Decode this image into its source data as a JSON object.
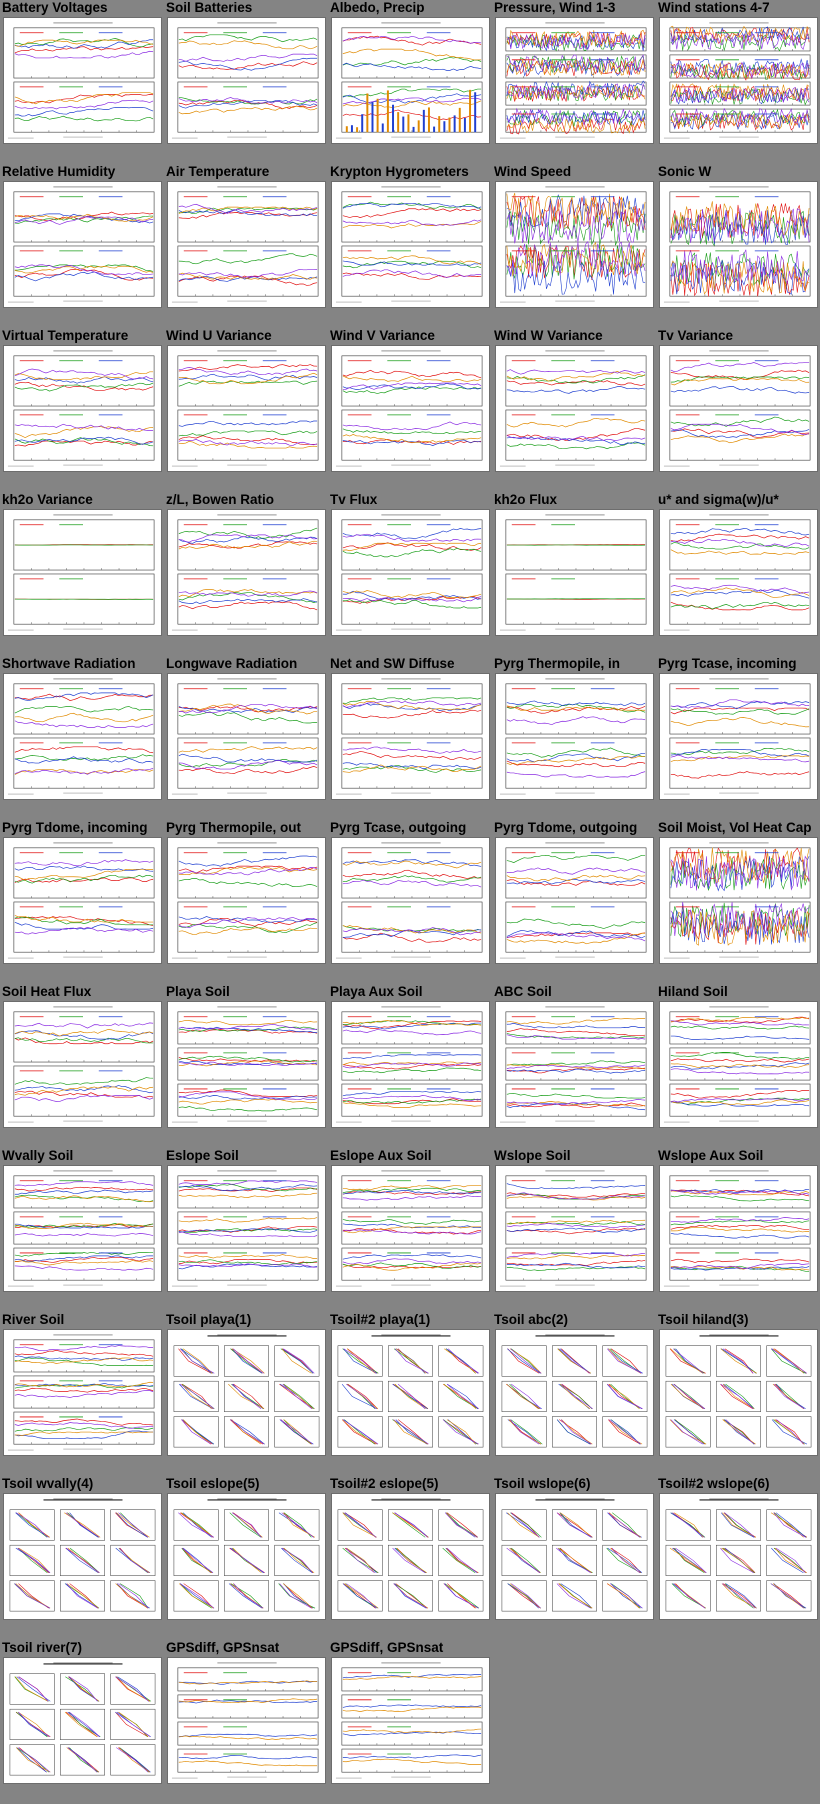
{
  "page": {
    "background": "#848484"
  },
  "panels": [
    {
      "title": "Battery Voltages",
      "thumb_type": "strip-2"
    },
    {
      "title": "Soil Batteries",
      "thumb_type": "strip-2"
    },
    {
      "title": "Albedo, Precip",
      "thumb_type": "bars"
    },
    {
      "title": "Pressure, Wind 1-3",
      "thumb_type": "strip-4"
    },
    {
      "title": "Wind stations 4-7",
      "thumb_type": "strip-4"
    },
    {
      "title": "Relative Humidity",
      "thumb_type": "strip-2"
    },
    {
      "title": "Air Temperature",
      "thumb_type": "strip-2"
    },
    {
      "title": "Krypton Hygrometers",
      "thumb_type": "strip-2"
    },
    {
      "title": "Wind Speed",
      "thumb_type": "strip-2-dense"
    },
    {
      "title": "Sonic W",
      "thumb_type": "strip-2-dense"
    },
    {
      "title": "Virtual Temperature",
      "thumb_type": "strip-2"
    },
    {
      "title": "Wind U Variance",
      "thumb_type": "strip-2"
    },
    {
      "title": "Wind V Variance",
      "thumb_type": "strip-2"
    },
    {
      "title": "Wind W Variance",
      "thumb_type": "strip-2"
    },
    {
      "title": "Tv Variance",
      "thumb_type": "strip-2"
    },
    {
      "title": "kh2o Variance",
      "thumb_type": "strip-2-flat"
    },
    {
      "title": "z/L, Bowen Ratio",
      "thumb_type": "strip-2"
    },
    {
      "title": "Tv Flux",
      "thumb_type": "strip-2"
    },
    {
      "title": "kh2o Flux",
      "thumb_type": "strip-2-flat"
    },
    {
      "title": "u* and sigma(w)/u*",
      "thumb_type": "strip-2"
    },
    {
      "title": "Shortwave Radiation",
      "thumb_type": "strip-2"
    },
    {
      "title": "Longwave Radiation",
      "thumb_type": "strip-2"
    },
    {
      "title": "Net and SW Diffuse",
      "thumb_type": "strip-2"
    },
    {
      "title": "Pyrg Thermopile, in",
      "thumb_type": "strip-2"
    },
    {
      "title": "Pyrg Tcase, incoming",
      "thumb_type": "strip-2"
    },
    {
      "title": "Pyrg Tdome, incoming",
      "thumb_type": "strip-2"
    },
    {
      "title": "Pyrg Thermopile, out",
      "thumb_type": "strip-2"
    },
    {
      "title": "Pyrg Tcase, outgoing",
      "thumb_type": "strip-2"
    },
    {
      "title": "Pyrg Tdome, outgoing",
      "thumb_type": "strip-2"
    },
    {
      "title": "Soil Moist, Vol Heat Cap",
      "thumb_type": "strip-2-dense"
    },
    {
      "title": "Soil Heat Flux",
      "thumb_type": "strip-2"
    },
    {
      "title": "Playa Soil",
      "thumb_type": "strip-3"
    },
    {
      "title": "Playa Aux Soil",
      "thumb_type": "strip-3"
    },
    {
      "title": "ABC Soil",
      "thumb_type": "strip-3"
    },
    {
      "title": "Hiland Soil",
      "thumb_type": "strip-3"
    },
    {
      "title": "Wvally Soil",
      "thumb_type": "strip-3"
    },
    {
      "title": "Eslope Soil",
      "thumb_type": "strip-3"
    },
    {
      "title": "Eslope Aux Soil",
      "thumb_type": "strip-3"
    },
    {
      "title": "Wslope Soil",
      "thumb_type": "strip-3"
    },
    {
      "title": "Wslope Aux Soil",
      "thumb_type": "strip-3"
    },
    {
      "title": "River Soil",
      "thumb_type": "strip-3"
    },
    {
      "title": "Tsoil playa(1)",
      "thumb_type": "profile-grid"
    },
    {
      "title": "Tsoil#2 playa(1)",
      "thumb_type": "profile-grid"
    },
    {
      "title": "Tsoil abc(2)",
      "thumb_type": "profile-grid"
    },
    {
      "title": "Tsoil hiland(3)",
      "thumb_type": "profile-grid"
    },
    {
      "title": "Tsoil wvally(4)",
      "thumb_type": "profile-grid"
    },
    {
      "title": "Tsoil eslope(5)",
      "thumb_type": "profile-grid"
    },
    {
      "title": "Tsoil#2 eslope(5)",
      "thumb_type": "profile-grid"
    },
    {
      "title": "Tsoil wslope(6)",
      "thumb_type": "profile-grid"
    },
    {
      "title": "Tsoil#2 wslope(6)",
      "thumb_type": "profile-grid"
    },
    {
      "title": "Tsoil river(7)",
      "thumb_type": "profile-grid"
    },
    {
      "title": "GPSdiff, GPSnsat",
      "thumb_type": "strip-4-blue"
    },
    {
      "title": "GPSdiff, GPSnsat",
      "thumb_type": "strip-4-blue"
    }
  ],
  "palette": [
    "#e01010",
    "#1a9e1a",
    "#1f3fd0",
    "#e08a00",
    "#8a2be2",
    "#00a0a0",
    "#c0c000",
    "#d04090"
  ]
}
